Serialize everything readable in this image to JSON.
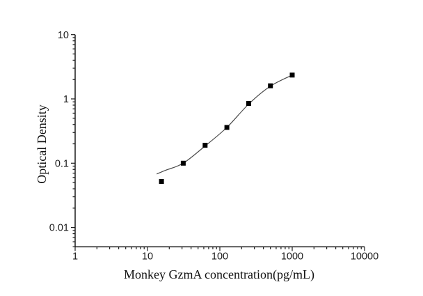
{
  "figure": {
    "background": "#ffffff",
    "ink_color": "#1a1a1a"
  },
  "chart_data": {
    "type": "scatter",
    "title": "",
    "xlabel": "Monkey GzmA concentration(pg/mL)",
    "ylabel": "Optical Density",
    "xscale": "log",
    "yscale": "log",
    "xlim": [
      1,
      10000
    ],
    "ylim": [
      0.005,
      10
    ],
    "grid": false,
    "legend": "none",
    "x_ticks": {
      "values": [
        1,
        10,
        100,
        1000,
        10000
      ],
      "labels": [
        "1",
        "10",
        "100",
        "1000",
        "10000"
      ]
    },
    "y_ticks": {
      "values": [
        10,
        1,
        0.1,
        0.01
      ],
      "labels": [
        "10",
        "1",
        "0.1",
        "0.01"
      ]
    },
    "series": [
      {
        "name": "standard-points",
        "kind": "scatter",
        "marker": "filled-square",
        "marker_size_px": 7,
        "color": "#000000",
        "x": [
          15.6,
          31.2,
          62.5,
          125,
          250,
          500,
          1000
        ],
        "y": [
          0.052,
          0.1,
          0.19,
          0.36,
          0.85,
          1.6,
          2.35
        ]
      },
      {
        "name": "fit-curve",
        "kind": "line",
        "color": "#4a4a4a",
        "points": [
          [
            13.4,
            0.068
          ],
          [
            18,
            0.078
          ],
          [
            31.2,
            0.1
          ],
          [
            62.5,
            0.185
          ],
          [
            125,
            0.36
          ],
          [
            250,
            0.83
          ],
          [
            500,
            1.58
          ],
          [
            1000,
            2.35
          ]
        ]
      }
    ]
  }
}
